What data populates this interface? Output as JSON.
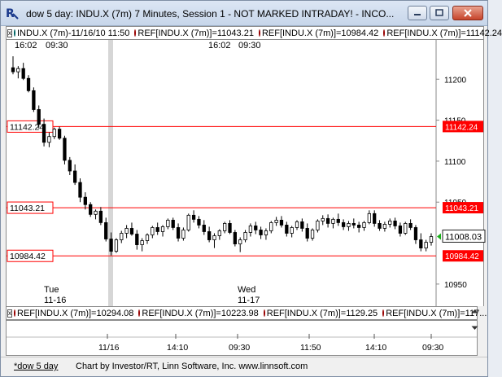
{
  "window": {
    "title": "dow 5 day: INDU.X (7m) 7 Minutes, Session 1 - NOT MARKED INTRADAY! - INCO..."
  },
  "legend_top": {
    "items": [
      {
        "dot": "green",
        "text": "INDU.X (7m)-11/16/10 11:50"
      },
      {
        "dot": "red",
        "text": "REF[INDU.X (7m)]=11043.21"
      },
      {
        "dot": "red",
        "text": "REF[INDU.X (7m)]=10984.42"
      },
      {
        "dot": "red",
        "text": "REF[INDU.X (7m)]=11142.24"
      }
    ]
  },
  "legend_bottom": {
    "items": [
      {
        "dot": "red",
        "text": "REF[INDU.X (7m)]=10294.08"
      },
      {
        "dot": "red",
        "text": "REF[INDU.X (7m)]=10223.98"
      },
      {
        "dot": "red",
        "text": "REF[INDU.X (7m)]=1129.25"
      },
      {
        "dot": "red",
        "text": "REF[INDU.X (7m)]=117..."
      }
    ]
  },
  "chart_data": {
    "type": "candlestick",
    "yaxis_ticks": [
      11200,
      11150,
      11100,
      11050,
      10950
    ],
    "ylim": [
      10932,
      11240
    ],
    "reference_lines": [
      {
        "value": 11142.24,
        "label": "11142.24"
      },
      {
        "value": 11043.21,
        "label": "11043.21"
      },
      {
        "value": 10984.42,
        "label": "10984.42"
      }
    ],
    "last_price": {
      "value": 11008.03,
      "label": "11008.03"
    },
    "session_markers": [
      {
        "time_label": "16:02",
        "session_label": "09:30",
        "day": "Tue",
        "date": "11-16"
      },
      {
        "time_label": "16:02",
        "session_label": "09:30",
        "day": "Wed",
        "date": "11-17"
      }
    ],
    "xaxis_ticks": [
      "11/16",
      "14:10",
      "09:30",
      "11:50",
      "14:10",
      "09:30"
    ],
    "candles": [
      [
        11214,
        11228,
        11206,
        11209
      ],
      [
        11209,
        11216,
        11201,
        11213
      ],
      [
        11213,
        11220,
        11199,
        11201
      ],
      [
        11201,
        11205,
        11184,
        11186
      ],
      [
        11186,
        11190,
        11160,
        11163
      ],
      [
        11163,
        11168,
        11140,
        11145
      ],
      [
        11145,
        11152,
        11118,
        11123
      ],
      [
        11123,
        11135,
        11117,
        11130
      ],
      [
        11130,
        11141,
        11127,
        11139
      ],
      [
        11139,
        11142,
        11126,
        11128
      ],
      [
        11128,
        11131,
        11096,
        11101
      ],
      [
        11101,
        11105,
        11083,
        11088
      ],
      [
        11088,
        11096,
        11071,
        11074
      ],
      [
        11074,
        11079,
        11050,
        11056
      ],
      [
        11056,
        11062,
        11041,
        11047
      ],
      [
        11047,
        11050,
        11032,
        11035
      ],
      [
        11035,
        11041,
        11029,
        11039
      ],
      [
        11039,
        11044,
        11022,
        11025
      ],
      [
        11025,
        11031,
        11002,
        11005
      ],
      [
        11005,
        11013,
        10985,
        10990
      ],
      [
        10990,
        11006,
        10988,
        11004
      ],
      [
        11004,
        11015,
        11000,
        11012
      ],
      [
        11012,
        11022,
        11006,
        11018
      ],
      [
        11018,
        11025,
        11009,
        11011
      ],
      [
        11011,
        11016,
        10992,
        10998
      ],
      [
        10998,
        11006,
        10990,
        11003
      ],
      [
        11003,
        11012,
        10999,
        11010
      ],
      [
        11010,
        11021,
        11006,
        11019
      ],
      [
        11019,
        11025,
        11010,
        11014
      ],
      [
        11014,
        11022,
        11008,
        11020
      ],
      [
        11020,
        11030,
        11017,
        11028
      ],
      [
        11028,
        11031,
        11016,
        11019
      ],
      [
        11019,
        11024,
        11002,
        11006
      ],
      [
        11006,
        11019,
        11003,
        11016
      ],
      [
        11016,
        11036,
        11014,
        11034
      ],
      [
        11034,
        11040,
        11025,
        11029
      ],
      [
        11029,
        11033,
        11018,
        11022
      ],
      [
        11022,
        11028,
        11010,
        11014
      ],
      [
        11014,
        11020,
        11001,
        11004
      ],
      [
        11004,
        11012,
        10994,
        11009
      ],
      [
        11009,
        11017,
        11004,
        11015
      ],
      [
        11015,
        11026,
        11012,
        11024
      ],
      [
        11024,
        11028,
        11011,
        11013
      ],
      [
        11013,
        11016,
        10996,
        10999
      ],
      [
        10999,
        11007,
        10989,
        11004
      ],
      [
        11004,
        11016,
        11001,
        11013
      ],
      [
        11013,
        11024,
        11008,
        11021
      ],
      [
        11021,
        11026,
        11011,
        11016
      ],
      [
        11016,
        11020,
        11005,
        11010
      ],
      [
        11010,
        11018,
        11004,
        11015
      ],
      [
        11015,
        11027,
        11012,
        11025
      ],
      [
        11025,
        11032,
        11021,
        11028
      ],
      [
        11028,
        11033,
        11019,
        11022
      ],
      [
        11022,
        11026,
        11008,
        11012
      ],
      [
        11012,
        11021,
        11007,
        11019
      ],
      [
        11019,
        11028,
        11016,
        11026
      ],
      [
        11026,
        11030,
        11014,
        11018
      ],
      [
        11018,
        11024,
        11002,
        11006
      ],
      [
        11006,
        11018,
        11003,
        11016
      ],
      [
        11016,
        11029,
        11013,
        11027
      ],
      [
        11027,
        11034,
        11022,
        11030
      ],
      [
        11030,
        11035,
        11019,
        11024
      ],
      [
        11024,
        11031,
        11018,
        11029
      ],
      [
        11029,
        11036,
        11021,
        11025
      ],
      [
        11025,
        11029,
        11016,
        11020
      ],
      [
        11020,
        11027,
        11015,
        11024
      ],
      [
        11024,
        11030,
        11018,
        11022
      ],
      [
        11022,
        11026,
        11013,
        11019
      ],
      [
        11019,
        11027,
        11015,
        11025
      ],
      [
        11025,
        11040,
        11023,
        11036
      ],
      [
        11036,
        11040,
        11020,
        11024
      ],
      [
        11024,
        11028,
        11015,
        11018
      ],
      [
        11018,
        11026,
        11014,
        11023
      ],
      [
        11023,
        11030,
        11019,
        11027
      ],
      [
        11027,
        11031,
        11017,
        11021
      ],
      [
        11021,
        11025,
        11008,
        11012
      ],
      [
        11012,
        11026,
        11010,
        11024
      ],
      [
        11024,
        11029,
        11016,
        11019
      ],
      [
        11019,
        11022,
        10999,
        11004
      ],
      [
        11004,
        11012,
        10990,
        10994
      ],
      [
        10994,
        11004,
        10990,
        11001
      ],
      [
        11001,
        11012,
        10997,
        11008
      ]
    ]
  },
  "status": {
    "tab": "*dow 5 day",
    "credit": "Chart by Investor/RT, Linn Software, Inc. www.linnsoft.com"
  },
  "colors": {
    "up": "#ffffff",
    "down": "#000000",
    "ref_line": "#ff0000",
    "last_price_marker": "#18b018",
    "session_band": "#d6d6d6"
  }
}
